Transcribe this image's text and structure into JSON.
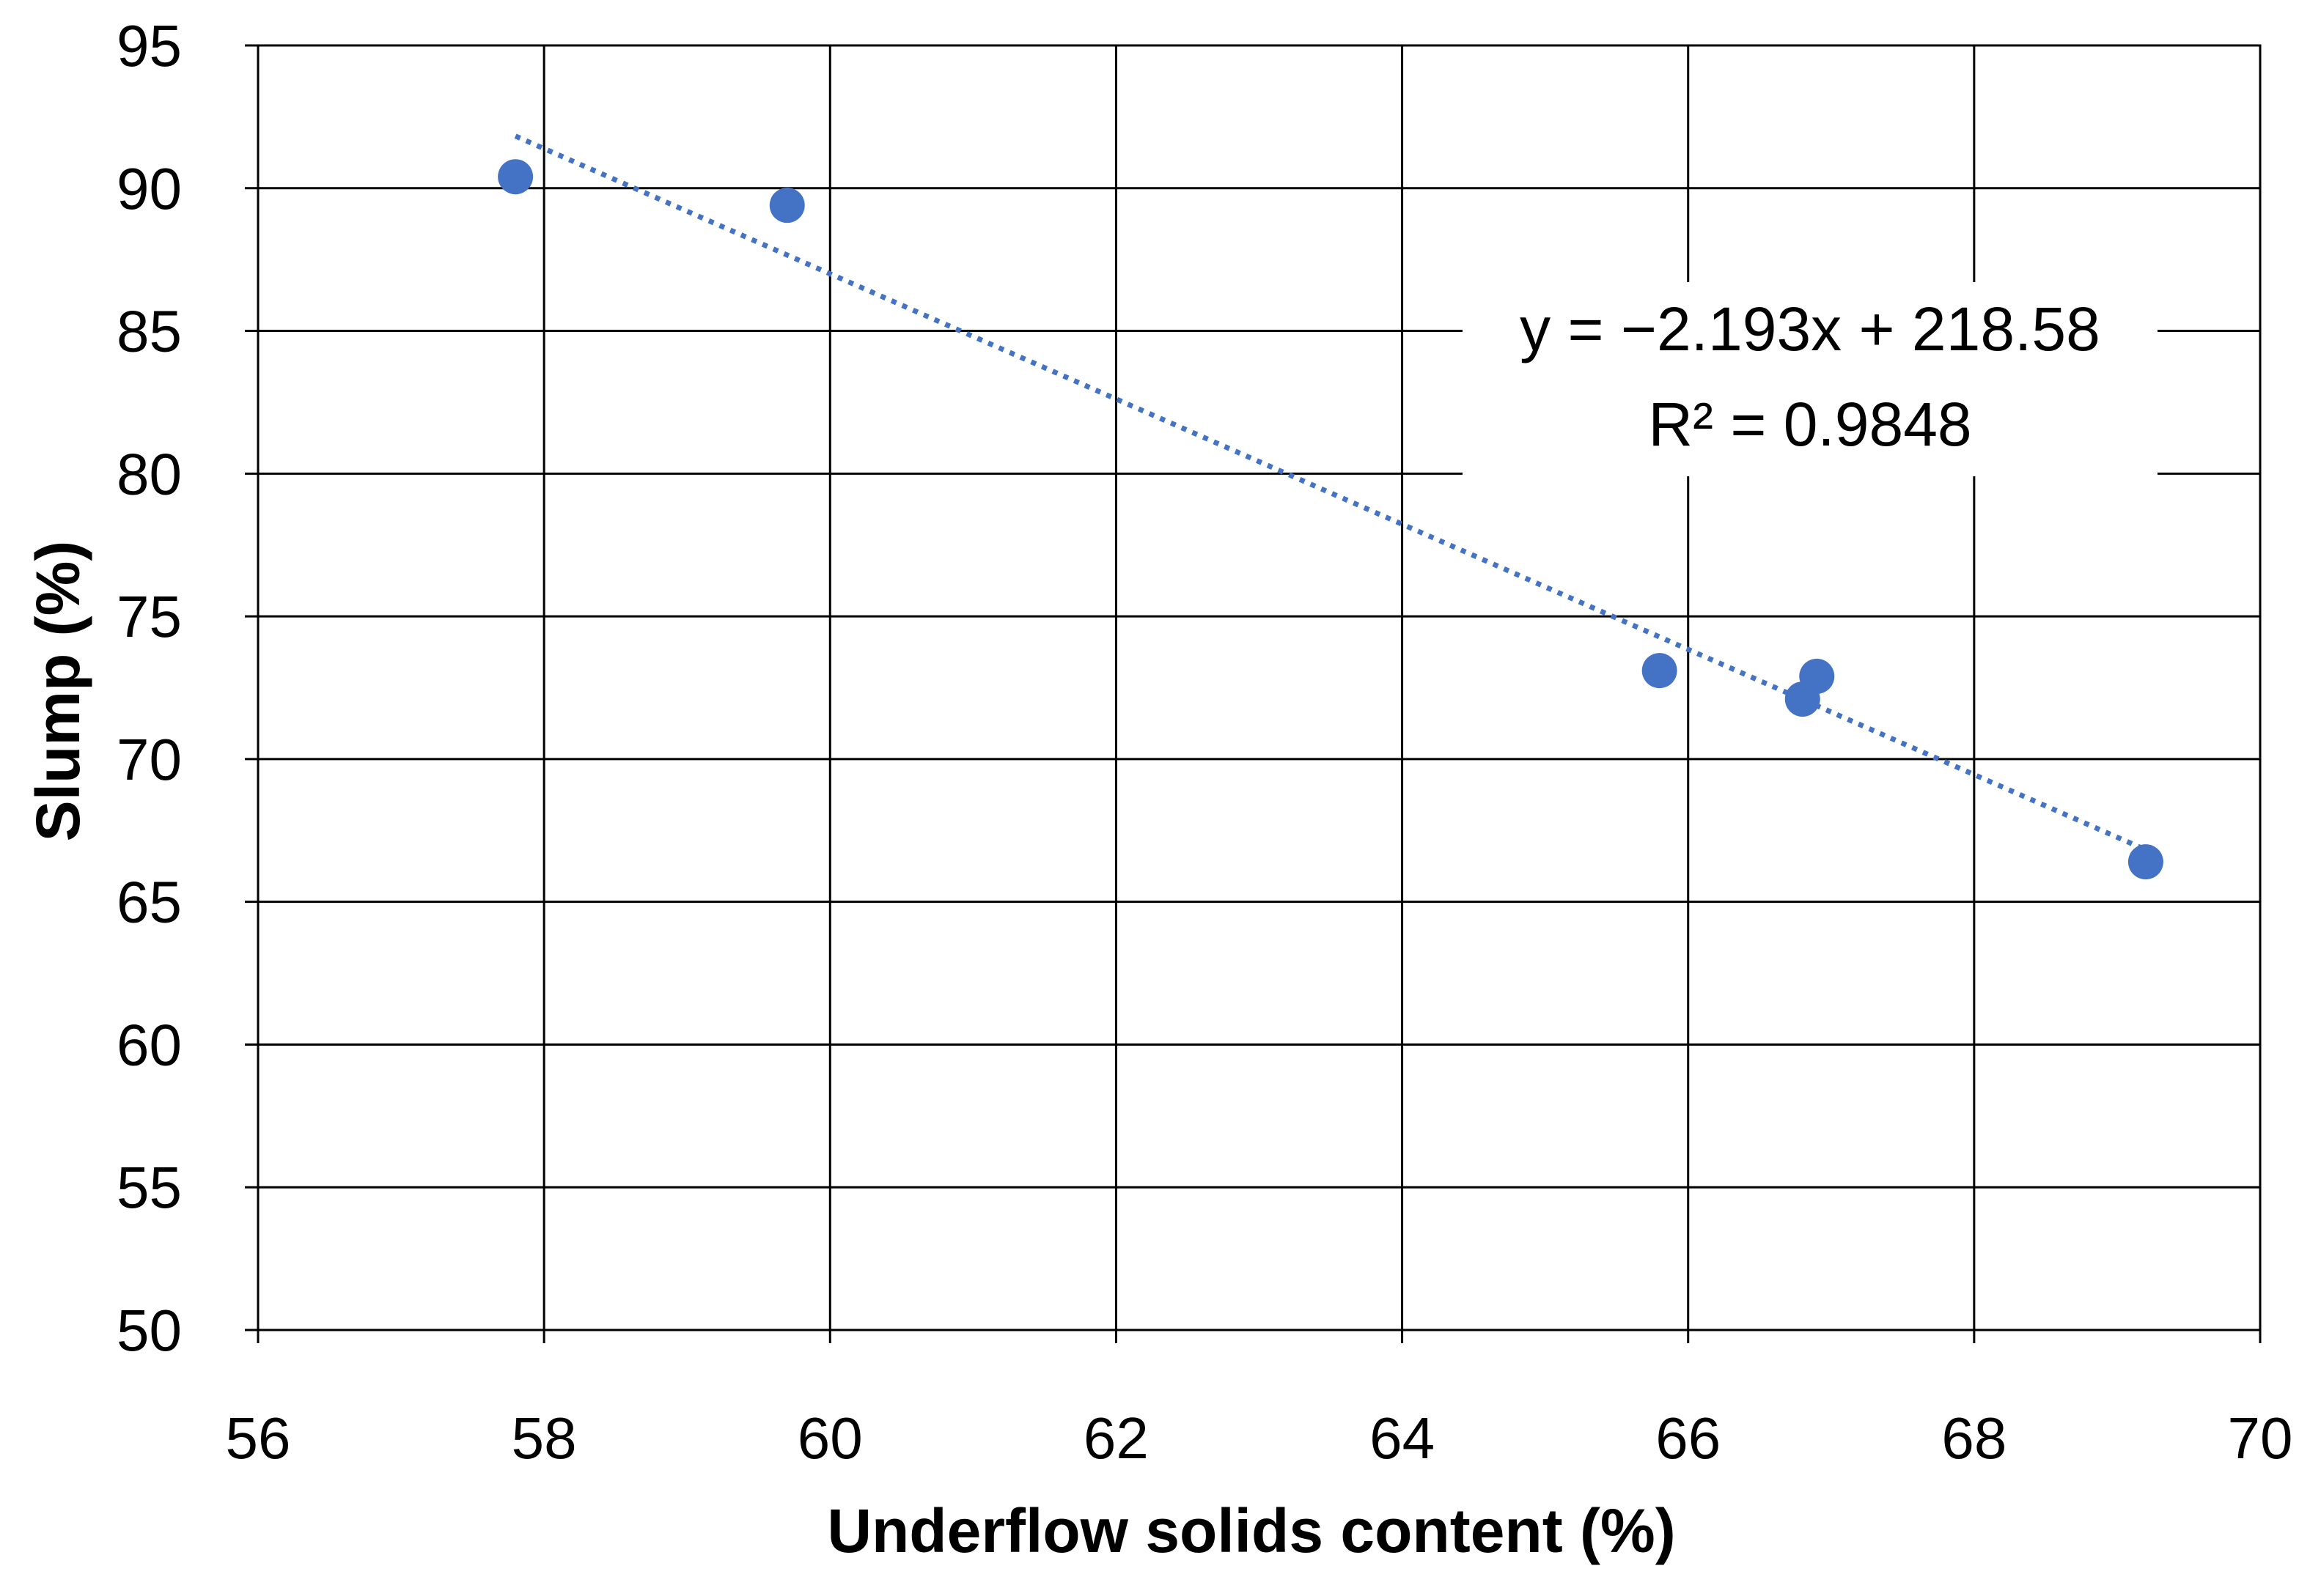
{
  "chart_data": {
    "type": "scatter",
    "title": "",
    "xlabel": "Underflow solids content (%)",
    "ylabel": "Slump (%)",
    "xlim": [
      56,
      70
    ],
    "ylim": [
      50,
      95
    ],
    "x_ticks": [
      56,
      58,
      60,
      62,
      64,
      66,
      68,
      70
    ],
    "y_ticks": [
      50,
      55,
      60,
      65,
      70,
      75,
      80,
      85,
      90,
      95
    ],
    "grid": true,
    "legend": "none",
    "series": [
      {
        "points": [
          {
            "x": 57.8,
            "y": 90.4
          },
          {
            "x": 59.7,
            "y": 89.4
          },
          {
            "x": 65.8,
            "y": 73.1
          },
          {
            "x": 66.8,
            "y": 72.1
          },
          {
            "x": 66.9,
            "y": 72.9
          },
          {
            "x": 69.2,
            "y": 66.4
          }
        ],
        "color": "#4472c4"
      }
    ],
    "trendline": {
      "type": "linear",
      "slope": -2.193,
      "intercept": 218.58,
      "x_range": [
        57.8,
        69.2
      ],
      "style": "dotted",
      "color": "#4472c4"
    },
    "annotations": {
      "equation": "y = −2.193x + 218.58",
      "r_squared": "R² = 0.9848"
    }
  }
}
